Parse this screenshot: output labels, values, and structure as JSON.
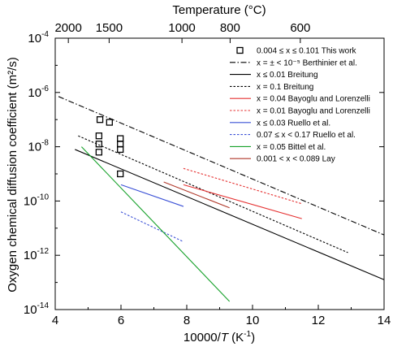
{
  "chart_data": {
    "type": "line",
    "xlabel": {
      "pre": "10000/",
      "italic": "T",
      "post": " (K",
      "sup": "-1",
      "end": ")"
    },
    "top_axis_label": "Temperature (°C)",
    "ylabel": "Oxygen chemical diffusion coefficient (m²/s)",
    "xlim": [
      4,
      14
    ],
    "ylim_log10": [
      -14,
      -4
    ],
    "x_ticks": [
      4,
      6,
      8,
      10,
      12,
      14
    ],
    "x_tick_labels": [
      "4",
      "6",
      "8",
      "10",
      "12",
      "14"
    ],
    "y_tick_exponents": [
      -14,
      -12,
      -10,
      -8,
      -6,
      -4
    ],
    "y_tick_base": "10",
    "top_ticks_celsius": [
      2000,
      1500,
      1000,
      800,
      600
    ],
    "top_tick_labels": [
      "2000",
      "1500",
      "1000",
      "800",
      "600"
    ],
    "legend_position": "top-right",
    "series": [
      {
        "name": "0.004 ≤ x ≤ 0.101 This work",
        "kind": "scatter",
        "marker": "open-square",
        "color": "#000000",
        "points": [
          [
            5.33,
            -7.6
          ],
          [
            5.33,
            -8.2
          ],
          [
            5.33,
            -7.9
          ],
          [
            5.98,
            -7.9
          ],
          [
            5.98,
            -7.7
          ],
          [
            5.98,
            -8.1
          ],
          [
            5.98,
            -9.0
          ],
          [
            5.65,
            -7.1
          ],
          [
            5.36,
            -7.0
          ]
        ]
      },
      {
        "name": "x = ± < 10⁻⁵ Berthinier et al.",
        "kind": "line",
        "color": "#000000",
        "dash": "dashdot",
        "points": [
          [
            4.1,
            -6.15
          ],
          [
            14.0,
            -11.25
          ]
        ]
      },
      {
        "name": "x ≤ 0.01 Breitung",
        "kind": "line",
        "color": "#000000",
        "dash": "solid",
        "points": [
          [
            4.6,
            -8.1
          ],
          [
            14.0,
            -12.9
          ]
        ]
      },
      {
        "name": "x = 0.1 Breitung",
        "kind": "line",
        "color": "#000000",
        "dash": "dotted",
        "points": [
          [
            4.7,
            -7.6
          ],
          [
            12.9,
            -11.9
          ]
        ]
      },
      {
        "name": "x = 0.04 Bayoglu and Lorenzelli",
        "kind": "line",
        "color": "#e53030",
        "dash": "solid",
        "points": [
          [
            7.9,
            -9.4
          ],
          [
            11.5,
            -10.65
          ]
        ]
      },
      {
        "name": "x = 0.01 Bayoglu and Lorenzelli",
        "kind": "line",
        "color": "#e53030",
        "dash": "dotted",
        "points": [
          [
            7.9,
            -8.8
          ],
          [
            11.5,
            -10.1
          ]
        ]
      },
      {
        "name": "x ≤ 0.03 Ruello et al.",
        "kind": "line",
        "color": "#3a50d6",
        "dash": "solid",
        "points": [
          [
            6.0,
            -9.4
          ],
          [
            7.9,
            -10.2
          ]
        ]
      },
      {
        "name": "0.07 ≤ x < 0.17 Ruello et al.",
        "kind": "line",
        "color": "#3a50d6",
        "dash": "dotted",
        "points": [
          [
            6.0,
            -10.4
          ],
          [
            7.9,
            -11.5
          ]
        ]
      },
      {
        "name": "x = 0.05 Bittel et al.",
        "kind": "line",
        "color": "#16a12a",
        "dash": "solid",
        "points": [
          [
            4.8,
            -8.0
          ],
          [
            9.3,
            -13.7
          ]
        ]
      },
      {
        "name": "0.001 < x < 0.089 Lay",
        "kind": "line",
        "color": "#b0382a",
        "dash": "solid",
        "points": [
          [
            7.3,
            -9.3
          ],
          [
            9.3,
            -10.25
          ]
        ]
      }
    ]
  }
}
